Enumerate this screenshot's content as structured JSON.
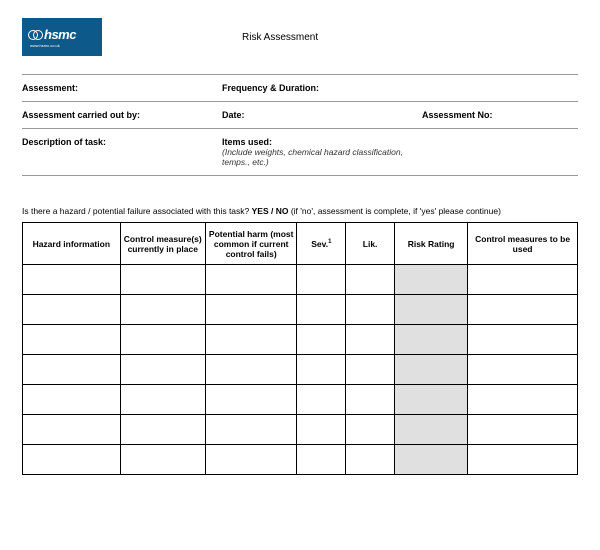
{
  "logo": {
    "brand": "hsmc",
    "sub": "www.hsmc.co.uk"
  },
  "title": "Risk Assessment",
  "fields": {
    "assessment": "Assessment:",
    "frequency": "Frequency & Duration:",
    "carried_out": "Assessment carried out by:",
    "date": "Date:",
    "assessment_no": "Assessment No:",
    "description": "Description of task:",
    "items_used": "Items used:",
    "items_used_sub": "(Include weights, chemical hazard classification, temps., etc.)"
  },
  "question": {
    "text_before": "Is there a hazard / potential failure associated with this task?   ",
    "yes_no": "YES / NO",
    "text_after": " (if 'no', assessment is complete, if 'yes' please continue)"
  },
  "table": {
    "headers": {
      "hazard": "Hazard information",
      "control": "Control measure(s) currently in place",
      "harm": "Potential harm (most common if current control fails)",
      "sev": "Sev.",
      "sev_sup": "1",
      "lik": "Lik.",
      "risk": "Risk Rating",
      "measures": "Control measures to be used"
    },
    "row_count": 7
  },
  "colors": {
    "logo_bg": "#0d5a8a",
    "border": "#999999",
    "table_border": "#000000",
    "shaded": "#e0e0e0"
  }
}
